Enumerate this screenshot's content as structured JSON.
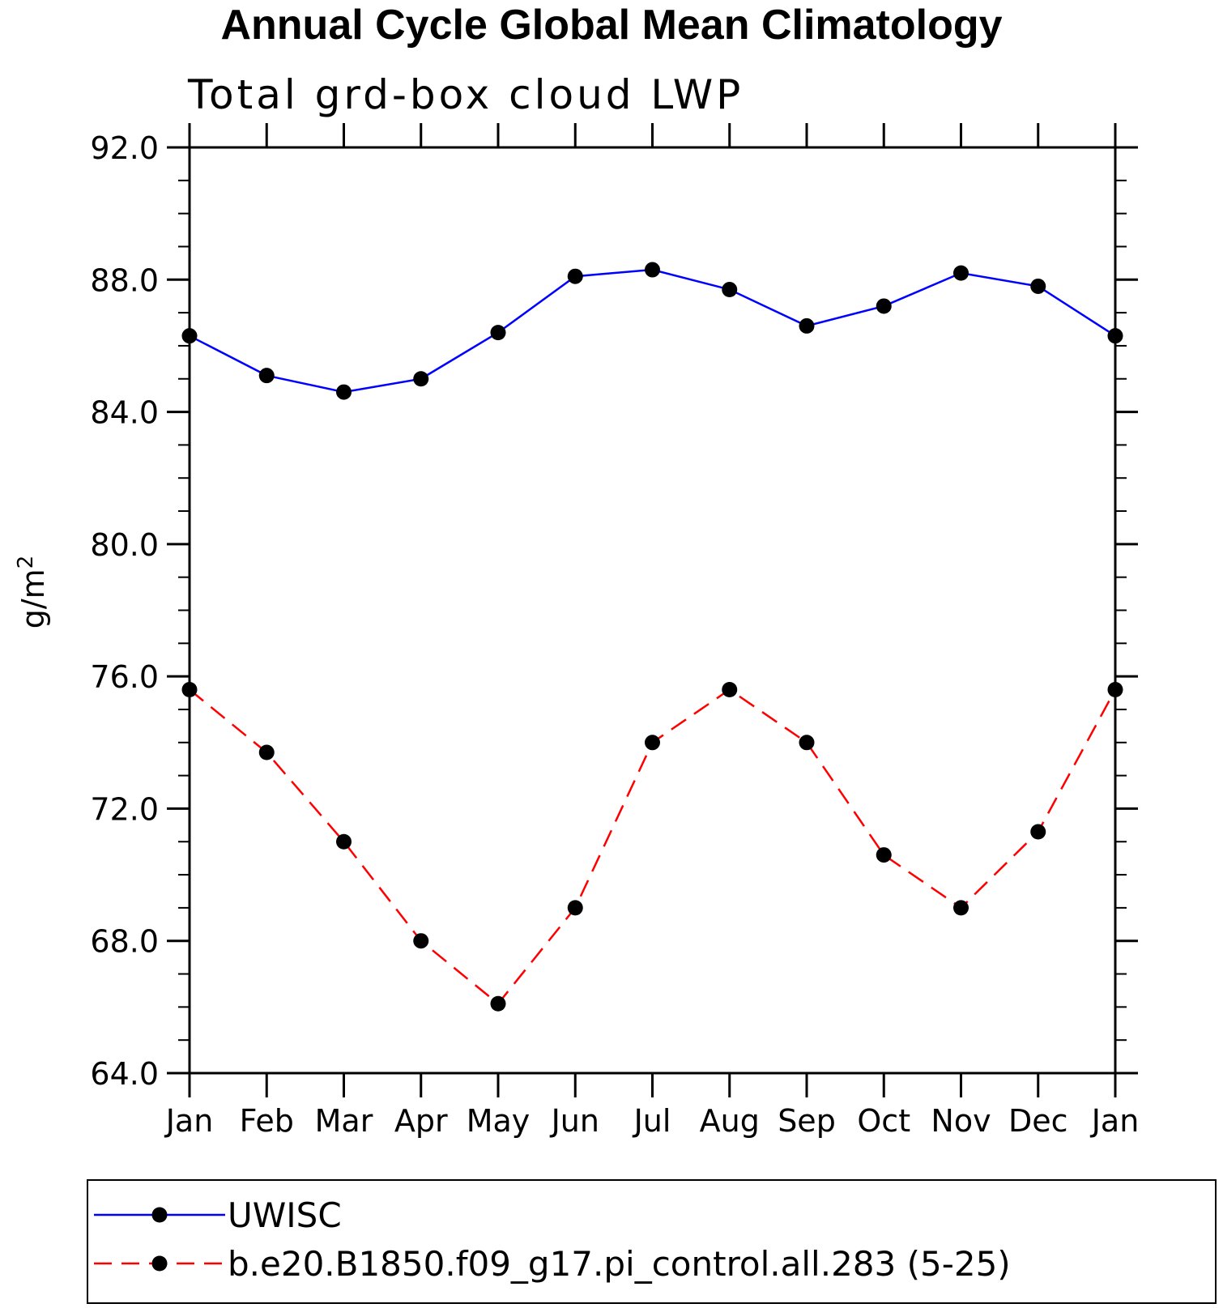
{
  "chart_data": {
    "type": "line",
    "title": "Annual Cycle Global Mean Climatology",
    "subtitle": "Total grd-box cloud LWP",
    "ylabel": "g/m",
    "ylabel_sup": "2",
    "ylim": [
      64,
      92
    ],
    "yticks": [
      "64.0",
      "68.0",
      "72.0",
      "76.0",
      "80.0",
      "84.0",
      "88.0",
      "92.0"
    ],
    "categories": [
      "Jan",
      "Feb",
      "Mar",
      "Apr",
      "May",
      "Jun",
      "Jul",
      "Aug",
      "Sep",
      "Oct",
      "Nov",
      "Dec",
      "Jan"
    ],
    "grid": false,
    "legend_position": "bottom",
    "series": [
      {
        "name": "UWISC",
        "color": "#0000ff",
        "dash": "solid",
        "marker": "filled-circle",
        "values": [
          86.3,
          85.1,
          84.6,
          85.0,
          86.4,
          88.1,
          88.3,
          87.7,
          86.6,
          87.2,
          88.2,
          87.8,
          86.3
        ]
      },
      {
        "name": "b.e20.B1850.f09_g17.pi_control.all.283 (5-25)",
        "color": "#ff0000",
        "dash": "dashed",
        "marker": "filled-circle",
        "values": [
          75.6,
          73.7,
          71.0,
          68.0,
          66.1,
          69.0,
          74.0,
          75.6,
          74.0,
          70.6,
          69.0,
          71.3,
          75.6
        ]
      }
    ]
  }
}
